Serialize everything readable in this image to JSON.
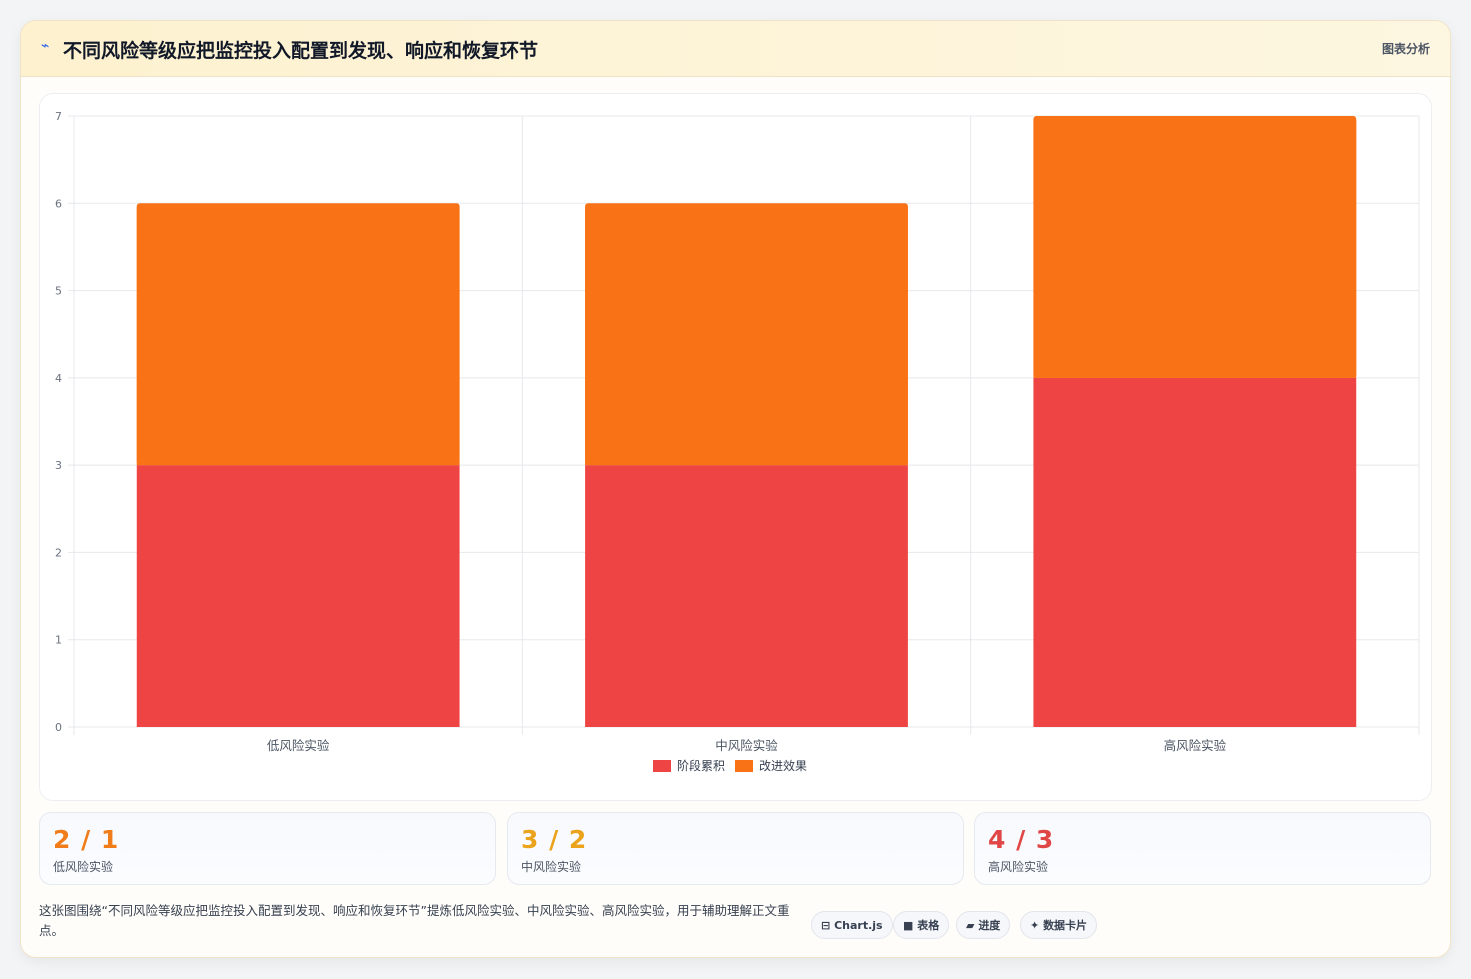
{
  "header": {
    "icon": "⌁",
    "title": "不同风险等级应把监控投入配置到发现、响应和恢复环节",
    "tag": "图表分析"
  },
  "chart_data": {
    "type": "bar",
    "stacked": true,
    "categories": [
      "低风险实验",
      "中风险实验",
      "高风险实验"
    ],
    "series": [
      {
        "name": "阶段累积",
        "values": [
          3,
          3,
          4
        ],
        "color": "#ef4444"
      },
      {
        "name": "改进效果",
        "values": [
          3,
          3,
          3
        ],
        "color": "#f97316"
      }
    ],
    "ylim": [
      0,
      7
    ],
    "yticks": [
      0,
      1,
      2,
      3,
      4,
      5,
      6,
      7
    ],
    "grid": true,
    "legend": "bottom"
  },
  "stats": [
    {
      "value": "2 / 1",
      "label": "低风险实验",
      "color": "#f07d1a"
    },
    {
      "value": "3 / 2",
      "label": "中风险实验",
      "color": "#eba31c"
    },
    {
      "value": "4 / 3",
      "label": "高风险实验",
      "color": "#e14646"
    }
  ],
  "footer": {
    "description": "这张图围绕“不同风险等级应把监控投入配置到发现、响应和恢复环节”提炼低风险实验、中风险实验、高风险实验，用于辅助理解正文重点。",
    "chips": [
      {
        "icon": "⊟",
        "label": "Chart.js"
      },
      {
        "icon": "■",
        "label": "表格"
      },
      {
        "icon": "▰",
        "label": "进度"
      },
      {
        "icon": "✦",
        "label": "数据卡片"
      }
    ]
  }
}
